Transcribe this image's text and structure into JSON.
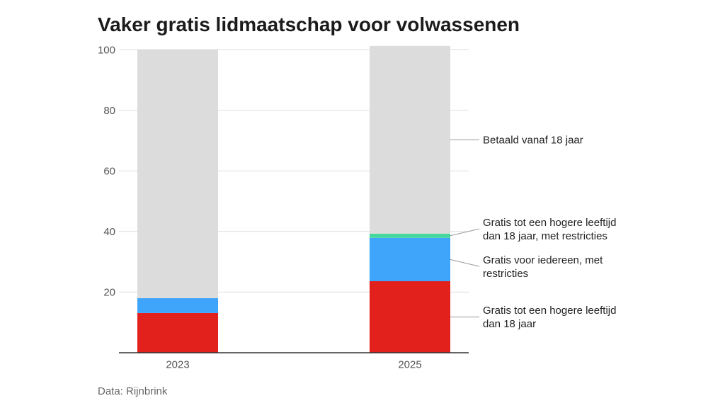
{
  "chart_data": {
    "type": "bar",
    "stacked": true,
    "title": "Vaker gratis lidmaatschap voor volwassenen",
    "categories": [
      "2023",
      "2025"
    ],
    "series": [
      {
        "name": "Gratis tot een hogere leeftijd dan 18 jaar",
        "color": "#e2211c",
        "values": [
          13.1,
          23.6
        ]
      },
      {
        "name": "Gratis voor iedereen, met restricties",
        "color": "#3fa5fb",
        "values": [
          4.9,
          14.3
        ]
      },
      {
        "name": "Gratis tot een hogere leeftijd dan 18 jaar, met restricties",
        "color": "#45d79b",
        "values": [
          0,
          1.4
        ]
      },
      {
        "name": "Betaald vanaf 18 jaar",
        "color": "#dcdcdc",
        "values": [
          82.0,
          61.9
        ]
      }
    ],
    "yticks": [
      20,
      40,
      60,
      80,
      100
    ],
    "ylim": [
      0,
      100
    ],
    "xlabel": "",
    "ylabel": "",
    "grid": true,
    "legend": "right",
    "source": "Data: Rijnbrink"
  }
}
